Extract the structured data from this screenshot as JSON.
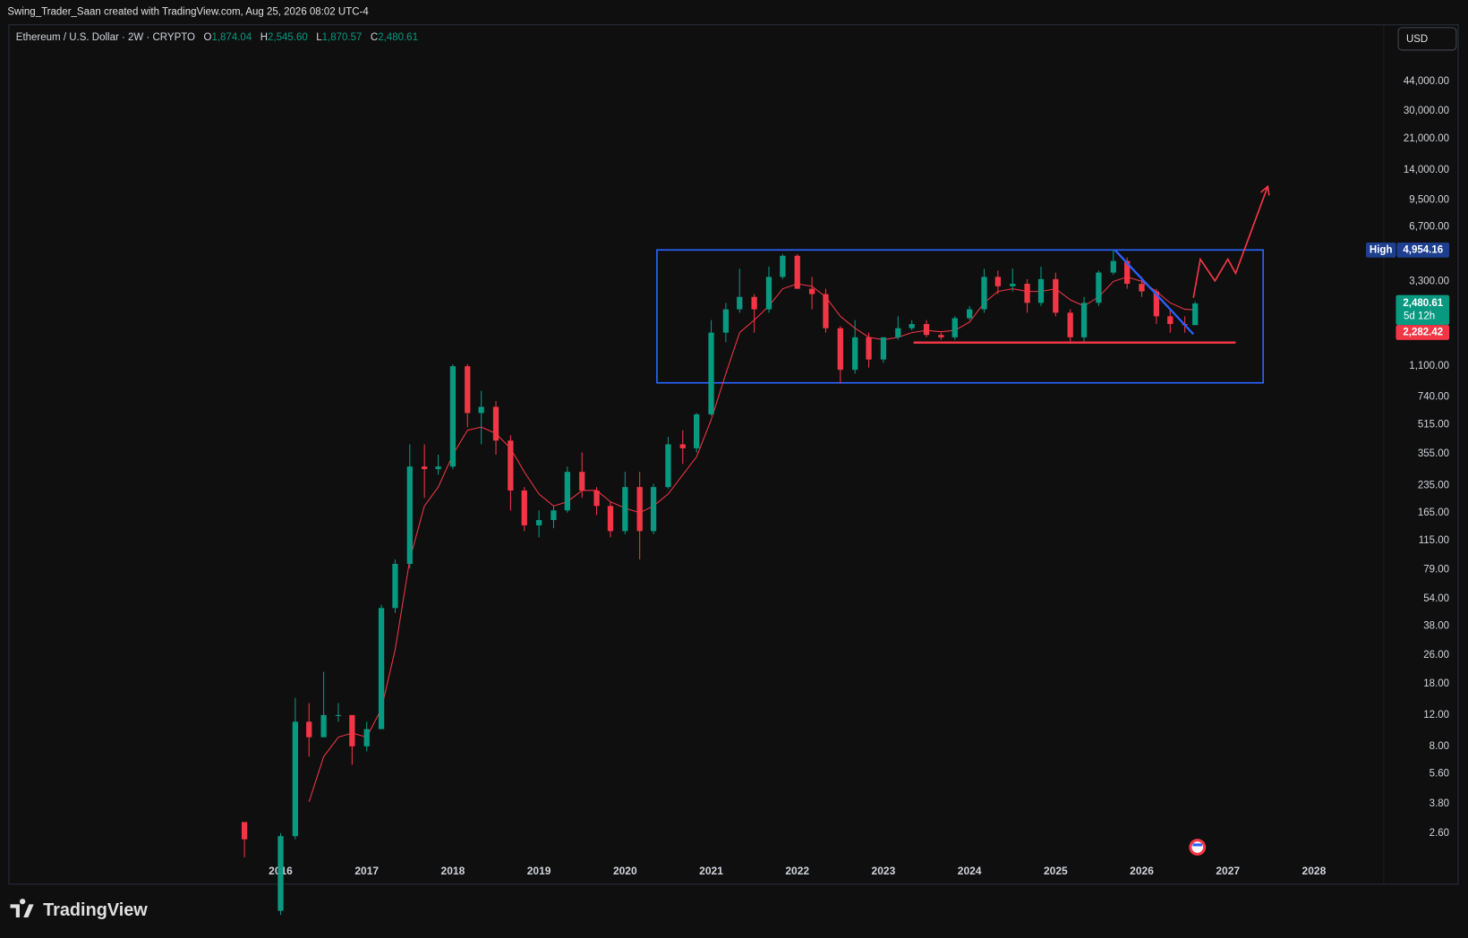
{
  "header": "Swing_Trader_Saan created with TradingView.com, Aug 25, 2026 08:02 UTC-4",
  "brand": "TradingView",
  "currency_button": "USD",
  "chart_data": {
    "type": "candlestick",
    "legend": {
      "symbol": "Ethereum / U.S. Dollar · 2W · CRYPTO",
      "ohlc": [
        {
          "key": "O",
          "label": "1,874.04"
        },
        {
          "key": "H",
          "label": "2,545.60"
        },
        {
          "key": "L",
          "label": "1,870.57"
        },
        {
          "key": "C",
          "label": "2,480.61"
        }
      ]
    },
    "log_scale": true,
    "grid": false,
    "up_color": "#089981",
    "down_color": "#f23645",
    "xlim": [
      2012.85,
      2028.81
    ],
    "xticks": [
      2016,
      2017,
      2018,
      2019,
      2020,
      2021,
      2022,
      2023,
      2024,
      2025,
      2026,
      2027,
      2028
    ],
    "ylim": [
      1.85,
      91100
    ],
    "yticks": [
      {
        "value": 44000,
        "label": "44,000.00"
      },
      {
        "value": 30000,
        "label": "30,000.00"
      },
      {
        "value": 21000,
        "label": "21,000.00"
      },
      {
        "value": 14000,
        "label": "14,000.00"
      },
      {
        "value": 9500,
        "label": "9,500.00"
      },
      {
        "value": 6700,
        "label": "6,700.00"
      },
      {
        "value": 3300,
        "label": "3,300.00"
      },
      {
        "value": 1100,
        "label": "1,100.00"
      },
      {
        "value": 740,
        "label": "740.00"
      },
      {
        "value": 515,
        "label": "515.00"
      },
      {
        "value": 355,
        "label": "355.00"
      },
      {
        "value": 235,
        "label": "235.00"
      },
      {
        "value": 165,
        "label": "165.00"
      },
      {
        "value": 115,
        "label": "115.00"
      },
      {
        "value": 79,
        "label": "79.00"
      },
      {
        "value": 54,
        "label": "54.00"
      },
      {
        "value": 38,
        "label": "38.00"
      },
      {
        "value": 26,
        "label": "26.00"
      },
      {
        "value": 18,
        "label": "18.00"
      },
      {
        "value": 12,
        "label": "12.00"
      },
      {
        "value": 8,
        "label": "8.00"
      },
      {
        "value": 5.6,
        "label": "5.60"
      },
      {
        "value": 3.8,
        "label": "3.80"
      },
      {
        "value": 2.6,
        "label": "2.60"
      }
    ],
    "x": [
      2015.58,
      2016.0,
      2016.17,
      2016.33,
      2016.5,
      2016.67,
      2016.83,
      2017.0,
      2017.17,
      2017.33,
      2017.5,
      2017.67,
      2017.83,
      2018.0,
      2018.17,
      2018.33,
      2018.5,
      2018.67,
      2018.83,
      2019.0,
      2019.17,
      2019.33,
      2019.5,
      2019.67,
      2019.83,
      2020.0,
      2020.17,
      2020.33,
      2020.5,
      2020.67,
      2020.83,
      2021.0,
      2021.17,
      2021.33,
      2021.5,
      2021.67,
      2021.83,
      2022.0,
      2022.17,
      2022.33,
      2022.5,
      2022.67,
      2022.83,
      2023.0,
      2023.17,
      2023.33,
      2023.5,
      2023.67,
      2023.83,
      2024.0,
      2024.17,
      2024.33,
      2024.5,
      2024.67,
      2024.83,
      2025.0,
      2025.17,
      2025.33,
      2025.5,
      2025.67,
      2025.83,
      2026.0,
      2026.17,
      2026.33,
      2026.5,
      2026.62
    ],
    "open": [
      3.0,
      0.95,
      2.5,
      11,
      9,
      12,
      12,
      8,
      10,
      48,
      85,
      300,
      290,
      300,
      1100,
      600,
      650,
      420,
      220,
      140,
      150,
      170,
      280,
      220,
      180,
      130,
      230,
      130,
      230,
      400,
      380,
      590,
      1700,
      2300,
      2700,
      2300,
      3500,
      4600,
      3000,
      2800,
      1800,
      1050,
      1600,
      1200,
      1600,
      1800,
      1900,
      1650,
      1600,
      2050,
      2300,
      3500,
      3100,
      3200,
      2500,
      3400,
      2200,
      1600,
      2500,
      3700,
      4300,
      3200,
      2900,
      2100,
      1900,
      1874.04
    ],
    "high": [
      3.0,
      2.6,
      15,
      14,
      21,
      14,
      12,
      11,
      50,
      90,
      400,
      400,
      350,
      1130,
      1130,
      800,
      700,
      450,
      230,
      170,
      180,
      300,
      360,
      230,
      190,
      280,
      280,
      240,
      440,
      480,
      600,
      2000,
      2500,
      3890,
      2800,
      4000,
      4700,
      4700,
      3500,
      3000,
      1850,
      2000,
      1700,
      1600,
      2100,
      2000,
      2000,
      1700,
      2100,
      2400,
      3890,
      3800,
      3900,
      3400,
      4000,
      3700,
      2300,
      2700,
      3800,
      4954.16,
      4500,
      3500,
      3000,
      2300,
      2100,
      2545.6
    ],
    "low": [
      1.9,
      0.9,
      2.4,
      7,
      9,
      11,
      6.3,
      7.5,
      10,
      45,
      80,
      200,
      270,
      290,
      500,
      400,
      350,
      170,
      130,
      120,
      135,
      165,
      200,
      160,
      120,
      125,
      90,
      125,
      225,
      310,
      360,
      580,
      1500,
      2200,
      1700,
      2200,
      3400,
      3000,
      2300,
      1700,
      880,
      1000,
      1080,
      1150,
      1550,
      1750,
      1600,
      1550,
      1550,
      2000,
      2200,
      2800,
      2900,
      2200,
      2400,
      2100,
      1470,
      1500,
      2400,
      3600,
      3000,
      2700,
      1900,
      1700,
      1700,
      1870.57
    ],
    "close": [
      2.4,
      2.5,
      11,
      9,
      12,
      12,
      8,
      10,
      48,
      85,
      300,
      290,
      300,
      1100,
      600,
      650,
      420,
      220,
      140,
      150,
      170,
      280,
      220,
      180,
      130,
      230,
      130,
      230,
      400,
      380,
      590,
      1700,
      2300,
      2700,
      2300,
      3500,
      4600,
      3000,
      2800,
      1800,
      1050,
      1600,
      1200,
      1600,
      1800,
      1900,
      1650,
      1600,
      2050,
      2300,
      3500,
      3100,
      3200,
      2500,
      3400,
      2200,
      1600,
      2500,
      3700,
      4300,
      3200,
      2900,
      2100,
      1900,
      1874,
      2480.61
    ],
    "ma": {
      "color": "#f23645",
      "values": [
        null,
        null,
        null,
        3.9,
        7,
        9,
        9.5,
        9,
        13,
        28,
        90,
        180,
        230,
        350,
        480,
        500,
        460,
        380,
        280,
        210,
        180,
        190,
        220,
        220,
        190,
        175,
        165,
        180,
        210,
        270,
        340,
        550,
        1000,
        1700,
        2000,
        2400,
        3000,
        3200,
        3100,
        2700,
        2100,
        1800,
        1600,
        1550,
        1600,
        1700,
        1750,
        1720,
        1750,
        1950,
        2500,
        2900,
        3000,
        2900,
        2900,
        3000,
        2600,
        2400,
        2700,
        3300,
        3500,
        3300,
        2900,
        2500,
        2300,
        2282.42
      ]
    },
    "drawings": {
      "box": {
        "color": "#2962ff",
        "x": [
          2020.37,
          2027.41
        ],
        "y": [
          887,
          4960
        ]
      },
      "trendline": {
        "color": "#2962ff",
        "x": [
          2025.69,
          2026.6
        ],
        "y": [
          4950,
          1666
        ]
      },
      "support": {
        "color": "#f23645",
        "x": [
          2023.35,
          2027.09
        ],
        "y": [
          1494,
          1494
        ]
      },
      "projection": {
        "color": "#f23645",
        "x": [
          2026.6,
          2026.68,
          2026.85,
          2027.0,
          2027.09,
          2027.46
        ],
        "y": [
          2673,
          4400,
          3325,
          4400,
          3664,
          11180
        ]
      }
    },
    "high_label": {
      "tag": "High",
      "value": 4954.16,
      "label": "4,954.16",
      "color": "#1e3f8f"
    },
    "last_price": {
      "value": 2480.61,
      "label": "2,480.61",
      "countdown": "5d 12h",
      "color": "#089981"
    },
    "ma_price": {
      "value": 2282.42,
      "label": "2,282.42",
      "color": "#f23645"
    }
  }
}
